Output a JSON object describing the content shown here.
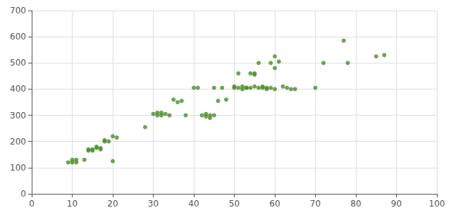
{
  "chart_data": {
    "type": "scatter",
    "x": [
      9,
      10,
      10,
      11,
      11,
      13,
      14,
      14,
      15,
      15,
      16,
      16,
      17,
      17,
      18,
      18,
      19,
      20,
      20,
      21,
      28,
      30,
      31,
      31,
      32,
      32,
      33,
      34,
      35,
      36,
      37,
      38,
      40,
      41,
      42,
      43,
      43,
      44,
      44,
      45,
      45,
      46,
      47,
      48,
      50,
      51,
      52,
      53,
      54,
      55,
      55,
      56,
      57,
      58,
      59,
      60,
      50,
      51,
      52,
      53,
      54,
      55,
      56,
      57,
      58,
      59,
      60,
      60,
      61,
      62,
      63,
      64,
      65,
      70,
      72,
      77,
      78,
      85,
      87
    ],
    "values": [
      120,
      120,
      130,
      120,
      130,
      130,
      165,
      170,
      170,
      165,
      175,
      180,
      170,
      175,
      200,
      205,
      200,
      125,
      220,
      215,
      255,
      305,
      300,
      310,
      300,
      310,
      305,
      300,
      360,
      350,
      355,
      300,
      405,
      405,
      300,
      295,
      305,
      300,
      290,
      405,
      300,
      355,
      405,
      360,
      410,
      460,
      400,
      405,
      405,
      455,
      460,
      500,
      410,
      405,
      500,
      525,
      405,
      405,
      410,
      405,
      460,
      410,
      405,
      405,
      400,
      405,
      400,
      480,
      505,
      410,
      405,
      400,
      400,
      405,
      500,
      585,
      500,
      525,
      530
    ],
    "color": "#4a8c28",
    "xlim": [
      0,
      100
    ],
    "ylim": [
      0,
      700
    ],
    "xticks": [
      0,
      10,
      20,
      30,
      40,
      50,
      60,
      70,
      80,
      90,
      100
    ],
    "yticks": [
      0,
      100,
      200,
      300,
      400,
      500,
      600,
      700
    ],
    "grid": true
  }
}
